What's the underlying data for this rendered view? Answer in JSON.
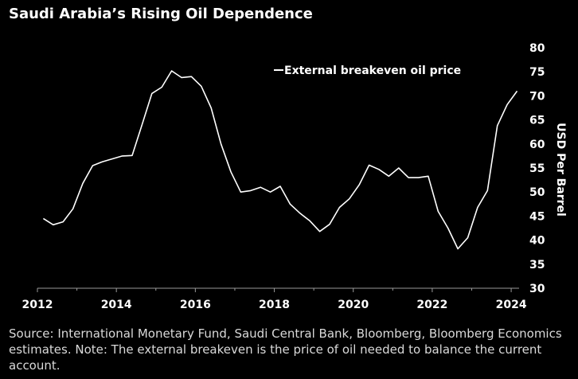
{
  "title": "Saudi Arabia’s Rising Oil Dependence",
  "footnote": "Source: International Monetary Fund, Saudi Central Bank, Bloomberg, Bloomberg Economics estimates. Note: The external breakeven is the price of oil needed to balance the current account.",
  "chart_data": {
    "type": "line",
    "ylabel": "USD Per Barrel",
    "ylim": [
      30,
      80
    ],
    "xlim": [
      2012,
      2024.2
    ],
    "x_ticks": [
      2012,
      2014,
      2016,
      2018,
      2020,
      2022,
      2024
    ],
    "y_ticks": [
      30,
      35,
      40,
      45,
      50,
      55,
      60,
      65,
      70,
      75,
      80
    ],
    "y_axis_position": "right",
    "grid": false,
    "legend_position": "top-right",
    "series": [
      {
        "name": "External breakeven oil price",
        "color": "#ffffff",
        "points": [
          [
            2012.15,
            44.5
          ],
          [
            2012.4,
            43.2
          ],
          [
            2012.65,
            43.8
          ],
          [
            2012.9,
            46.5
          ],
          [
            2013.15,
            51.8
          ],
          [
            2013.4,
            55.5
          ],
          [
            2013.65,
            56.3
          ],
          [
            2013.9,
            56.9
          ],
          [
            2014.15,
            57.5
          ],
          [
            2014.4,
            57.6
          ],
          [
            2014.65,
            64.0
          ],
          [
            2014.9,
            70.5
          ],
          [
            2015.15,
            71.8
          ],
          [
            2015.4,
            75.2
          ],
          [
            2015.65,
            73.8
          ],
          [
            2015.9,
            74.0
          ],
          [
            2016.15,
            72.0
          ],
          [
            2016.4,
            67.5
          ],
          [
            2016.65,
            60.0
          ],
          [
            2016.9,
            54.2
          ],
          [
            2017.15,
            50.0
          ],
          [
            2017.4,
            50.3
          ],
          [
            2017.65,
            51.0
          ],
          [
            2017.9,
            50.0
          ],
          [
            2018.15,
            51.2
          ],
          [
            2018.4,
            47.5
          ],
          [
            2018.65,
            45.6
          ],
          [
            2018.9,
            44.0
          ],
          [
            2019.15,
            41.8
          ],
          [
            2019.4,
            43.3
          ],
          [
            2019.65,
            46.8
          ],
          [
            2019.9,
            48.6
          ],
          [
            2020.15,
            51.5
          ],
          [
            2020.4,
            55.6
          ],
          [
            2020.65,
            54.7
          ],
          [
            2020.9,
            53.3
          ],
          [
            2021.15,
            55.0
          ],
          [
            2021.4,
            53.0
          ],
          [
            2021.65,
            53.0
          ],
          [
            2021.9,
            53.3
          ],
          [
            2022.15,
            46.0
          ],
          [
            2022.4,
            42.5
          ],
          [
            2022.65,
            38.2
          ],
          [
            2022.9,
            40.5
          ],
          [
            2023.15,
            46.8
          ],
          [
            2023.4,
            50.3
          ],
          [
            2023.65,
            63.8
          ],
          [
            2023.9,
            68.2
          ],
          [
            2024.15,
            71.0
          ]
        ]
      }
    ]
  }
}
